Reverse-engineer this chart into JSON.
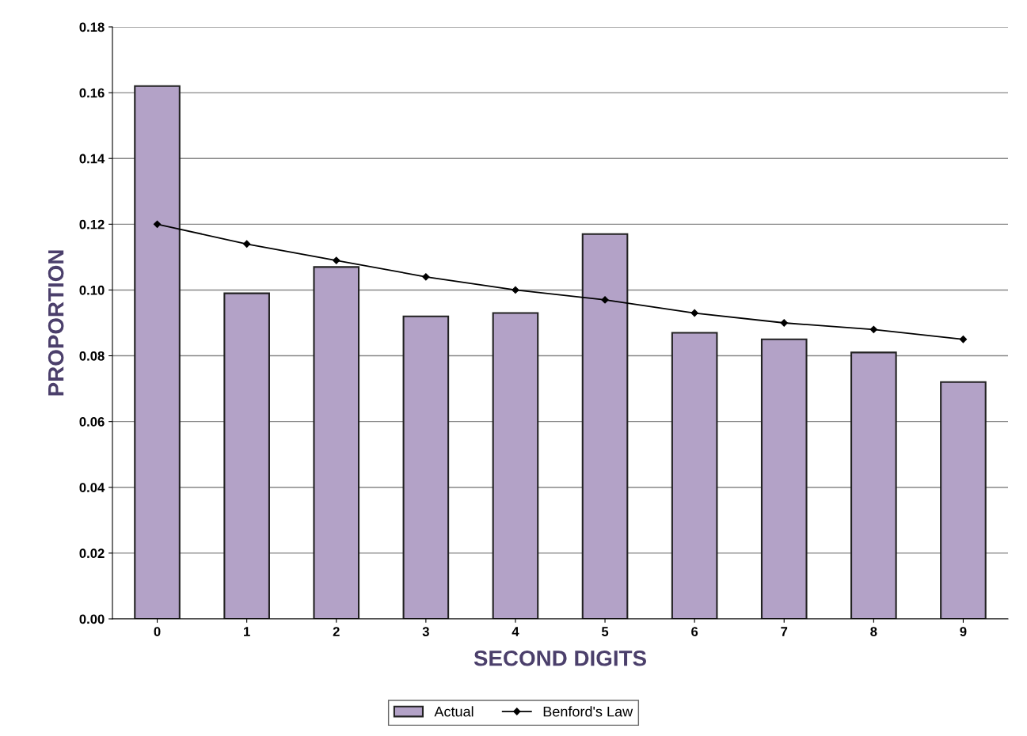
{
  "chart_data": {
    "type": "bar",
    "xlabel": "SECOND DIGITS",
    "ylabel": "PROPORTION",
    "categories": [
      "0",
      "1",
      "2",
      "3",
      "4",
      "5",
      "6",
      "7",
      "8",
      "9"
    ],
    "series": [
      {
        "name": "Actual",
        "color": "#b3a2c7",
        "values": [
          0.162,
          0.099,
          0.107,
          0.092,
          0.093,
          0.117,
          0.087,
          0.085,
          0.081,
          0.072
        ]
      },
      {
        "name": "Benford's Law",
        "type": "line",
        "color": "#000000",
        "marker": "diamond",
        "values": [
          0.12,
          0.114,
          0.109,
          0.104,
          0.1,
          0.097,
          0.093,
          0.09,
          0.088,
          0.085
        ]
      }
    ],
    "ylim": [
      0,
      0.18
    ],
    "yticks": [
      {
        "value": 0,
        "label": "0.00"
      },
      {
        "value": 0.02,
        "label": "0.02"
      },
      {
        "value": 0.04,
        "label": "0.04"
      },
      {
        "value": 0.06,
        "label": "0.06"
      },
      {
        "value": 0.08,
        "label": "0.08"
      },
      {
        "value": 0.1,
        "label": "0.10"
      },
      {
        "value": 0.12,
        "label": "0.12"
      },
      {
        "value": 0.14,
        "label": "0.14"
      },
      {
        "value": 0.16,
        "label": "0.16"
      },
      {
        "value": 0.18,
        "label": "0.18"
      }
    ],
    "grid": "y",
    "legend": "bottom"
  }
}
